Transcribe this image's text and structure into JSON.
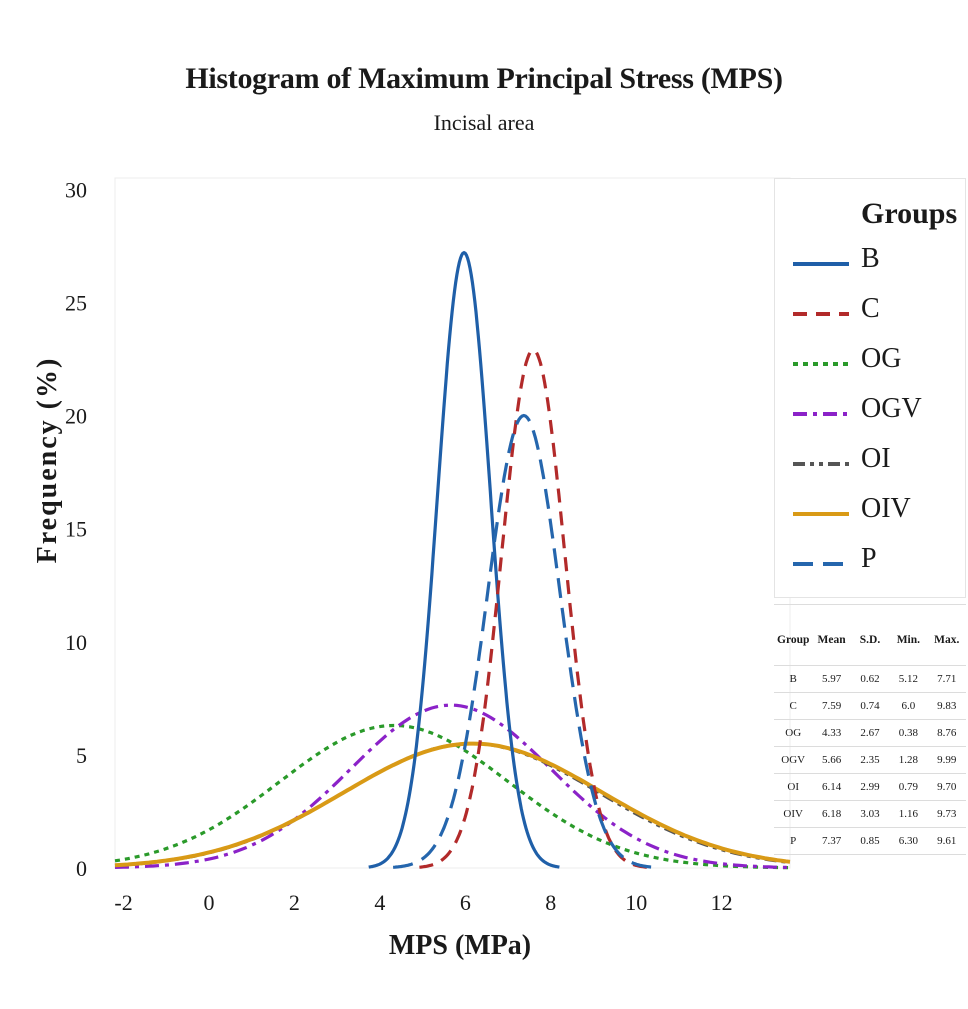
{
  "chart_data": {
    "type": "line",
    "title": "Histogram of Maximum Principal Stress (MPS)",
    "subtitle": "Incisal area",
    "xlabel": "MPS (MPa)",
    "ylabel": "Frequency (%)",
    "xlim": [
      -2.2,
      13.6
    ],
    "ylim": [
      0,
      30.5
    ],
    "xticks": [
      -2,
      0,
      2,
      4,
      6,
      8,
      10,
      12
    ],
    "yticks": [
      0,
      5,
      10,
      15,
      20,
      25,
      30
    ],
    "grid": false,
    "legend_title": "Groups",
    "legend_position": "right",
    "series": [
      {
        "name": "B",
        "color": "#1f5fa8",
        "dash": "solid",
        "mean": 5.97,
        "sd": 0.62,
        "min": 5.12,
        "max": 7.71,
        "peak": 27.2
      },
      {
        "name": "C",
        "color": "#b22a2a",
        "dash": "dash",
        "mean": 7.59,
        "sd": 0.74,
        "min": 6.0,
        "max": 9.83,
        "peak": 22.9
      },
      {
        "name": "OG",
        "color": "#2a9a2a",
        "dash": "dot",
        "mean": 4.33,
        "sd": 2.67,
        "min": 0.38,
        "max": 8.76,
        "peak": 6.3
      },
      {
        "name": "OGV",
        "color": "#8b22c8",
        "dash": "dashdot",
        "mean": 5.66,
        "sd": 2.35,
        "min": 1.28,
        "max": 9.99,
        "peak": 7.2
      },
      {
        "name": "OI",
        "color": "#555555",
        "dash": "dashdotdot",
        "mean": 6.14,
        "sd": 2.99,
        "min": 0.79,
        "max": 9.7,
        "peak": 5.5
      },
      {
        "name": "OIV",
        "color": "#d99a16",
        "dash": "solid",
        "mean": 6.18,
        "sd": 3.03,
        "min": 1.16,
        "max": 9.73,
        "peak": 5.5
      },
      {
        "name": "P",
        "color": "#2566ad",
        "dash": "longdash",
        "mean": 7.37,
        "sd": 0.85,
        "min": 6.3,
        "max": 9.61,
        "peak": 20.0
      }
    ]
  },
  "stats_table": {
    "headers": [
      "Group",
      "Mean",
      "S.D.",
      "Min.",
      "Max."
    ],
    "rows": [
      [
        "B",
        "5.97",
        "0.62",
        "5.12",
        "7.71"
      ],
      [
        "C",
        "7.59",
        "0.74",
        "6.0",
        "9.83"
      ],
      [
        "OG",
        "4.33",
        "2.67",
        "0.38",
        "8.76"
      ],
      [
        "OGV",
        "5.66",
        "2.35",
        "1.28",
        "9.99"
      ],
      [
        "OI",
        "6.14",
        "2.99",
        "0.79",
        "9.70"
      ],
      [
        "OIV",
        "6.18",
        "3.03",
        "1.16",
        "9.73"
      ],
      [
        "P",
        "7.37",
        "0.85",
        "6.30",
        "9.61"
      ]
    ]
  }
}
